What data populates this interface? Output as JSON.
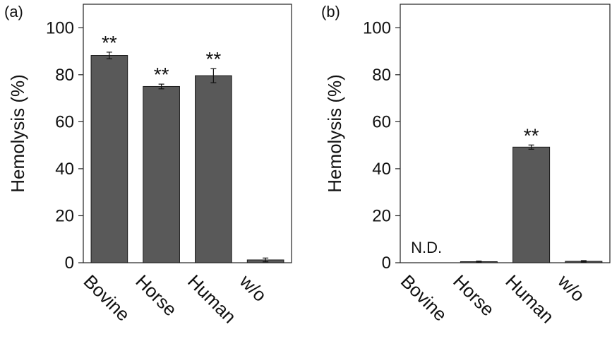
{
  "chart_data": [
    {
      "type": "bar",
      "panel_label": "(a)",
      "categories": [
        "Bovine",
        "Horse",
        "Human",
        "w/o"
      ],
      "values": [
        88.2,
        75.0,
        79.6,
        1.2
      ],
      "errors": [
        1.4,
        1.0,
        3.0,
        0.8
      ],
      "annotations": [
        "**",
        "**",
        "**",
        ""
      ],
      "ylabel": "Hemolysis (%)",
      "ylim": [
        0,
        110
      ],
      "yticks": [
        "0",
        "20",
        "40",
        "60",
        "80",
        "100"
      ],
      "bar_color": "#595959",
      "grid": false
    },
    {
      "type": "bar",
      "panel_label": "(b)",
      "categories": [
        "Bovine",
        "Horse",
        "Human",
        "w/o"
      ],
      "values": [
        null,
        0.4,
        49.2,
        0.6
      ],
      "errors": [
        0,
        0.3,
        0.9,
        0.3
      ],
      "annotations": [
        "N.D.",
        "",
        "**",
        ""
      ],
      "ylabel": "Hemolysis (%)",
      "ylim": [
        0,
        110
      ],
      "yticks": [
        "0",
        "20",
        "40",
        "60",
        "80",
        "100"
      ],
      "bar_color": "#595959",
      "grid": false
    }
  ]
}
